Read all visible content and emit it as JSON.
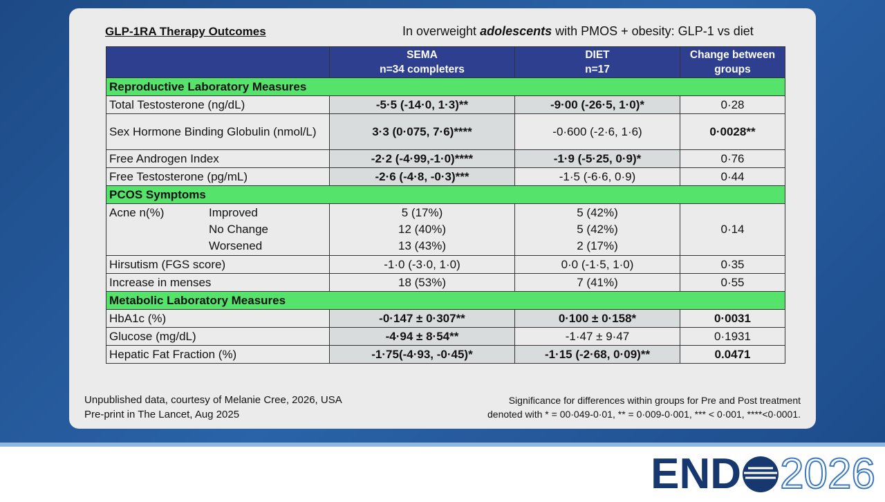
{
  "header": {
    "title": "GLP-1RA Therapy Outcomes",
    "subtitle": [
      "In overweight ",
      "adolescents",
      " with PMOS + obesity: GLP-1 vs diet"
    ]
  },
  "table": {
    "columns": [
      [
        "SEMA",
        "n=34 completers"
      ],
      [
        "DIET",
        "n=17"
      ],
      [
        "Change between groups"
      ]
    ],
    "sections": [
      {
        "title": "Reproductive Laboratory Measures",
        "rows": [
          {
            "label": "Total Testosterone (ng/dL)",
            "cells": [
              "-5·5 (-14·0, 1·3)**",
              "-9·00 (-26·5, 1·0)*",
              "0·28"
            ],
            "bold": [
              true,
              true,
              false
            ]
          },
          {
            "label": "Sex Hormone Binding Globulin (nmol/L)",
            "cells": [
              "3·3 (0·075, 7·6)****",
              "-0·600 (-2·6, 1·6)",
              "0·0028**"
            ],
            "bold": [
              true,
              false,
              true
            ]
          },
          {
            "label": "Free Androgen Index",
            "cells": [
              "-2·2 (-4·99,-1·0)****",
              "-1·9 (-5·25, 0·9)*",
              "0·76"
            ],
            "bold": [
              true,
              true,
              false
            ]
          },
          {
            "label": "Free Testosterone (pg/mL)",
            "cells": [
              "-2·6 (-4·8, -0·3)***",
              "-1·5 (-6·6, 0·9)",
              "0·44"
            ],
            "bold": [
              true,
              false,
              false
            ]
          }
        ]
      },
      {
        "title": "PCOS Symptoms",
        "rows": [
          {
            "label": "Acne n(%)",
            "sublabels": [
              "Improved",
              "No Change",
              "Worsened"
            ],
            "cells": [
              [
                "5 (17%)",
                "12 (40%)",
                "13 (43%)"
              ],
              [
                "5 (42%)",
                "5 (42%)",
                "2 (17%)"
              ],
              "0·14"
            ],
            "bold": [
              false,
              false,
              false
            ]
          },
          {
            "label": "Hirsutism (FGS score)",
            "cells": [
              "-1·0 (-3·0, 1·0)",
              "0·0 (-1·5, 1·0)",
              "0·35"
            ],
            "bold": [
              false,
              false,
              false
            ]
          },
          {
            "label": "Increase in menses",
            "cells": [
              "18 (53%)",
              "7 (41%)",
              "0·55"
            ],
            "bold": [
              false,
              false,
              false
            ]
          }
        ]
      },
      {
        "title": "Metabolic Laboratory Measures",
        "rows": [
          {
            "label": "HbA1c (%)",
            "cells": [
              "-0·147 ± 0·307**",
              "0·100 ± 0·158*",
              "0·0031"
            ],
            "bold": [
              true,
              true,
              true
            ]
          },
          {
            "label": "Glucose (mg/dL)",
            "cells": [
              "-4·94 ± 8·54**",
              "-1·47 ± 9·47",
              "0·1931"
            ],
            "bold": [
              true,
              false,
              false
            ]
          },
          {
            "label": "Hepatic Fat Fraction (%)",
            "cells": [
              "-1·75(-4·93, -0·45)*",
              "-1·15 (-2·68, 0·09)**",
              "0.0471"
            ],
            "bold": [
              true,
              true,
              true
            ]
          }
        ]
      }
    ]
  },
  "footer": {
    "left": [
      "Unpublished data, courtesy of Melanie Cree, 2026, USA",
      "Pre-print in The Lancet, Aug 2025"
    ],
    "right": [
      "Significance for differences within groups for Pre and Post treatment",
      "denoted with * = 00·049-0·01, ** = 0·009-0·001, *** < 0·001, ****<0·0001."
    ]
  },
  "logo": {
    "prefix": "END",
    "year": "2026"
  }
}
